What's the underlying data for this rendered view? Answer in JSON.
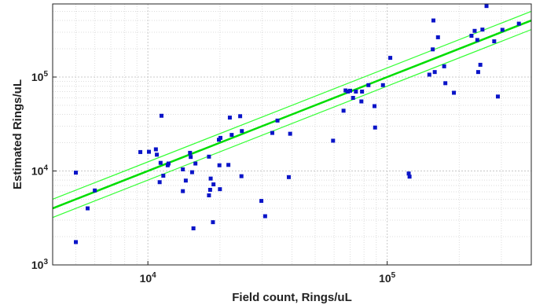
{
  "chart_data": {
    "type": "scatter",
    "title": "",
    "xlabel": "Field count, Rings/uL",
    "ylabel": "Estimated Rings/uL",
    "x_scale": "log",
    "y_scale": "log",
    "xlim": [
      4000,
      400000
    ],
    "ylim": [
      1000,
      600000
    ],
    "grid": true,
    "x_ticks": [
      {
        "value": 10000,
        "base": "10",
        "exp": "4"
      },
      {
        "value": 100000,
        "base": "10",
        "exp": "5"
      }
    ],
    "y_ticks": [
      {
        "value": 1000,
        "base": "10",
        "exp": "3"
      },
      {
        "value": 10000,
        "base": "10",
        "exp": "4"
      },
      {
        "value": 100000,
        "base": "10",
        "exp": "5"
      }
    ],
    "lines": [
      {
        "role": "fit",
        "x": [
          4000,
          400000
        ],
        "y": [
          4000,
          400000
        ],
        "color": "#00dd00"
      },
      {
        "role": "upper-bound",
        "x": [
          4000,
          400000
        ],
        "y": [
          5000,
          500000
        ],
        "color": "#33ff33"
      },
      {
        "role": "lower-bound",
        "x": [
          4000,
          400000
        ],
        "y": [
          3200,
          320000
        ],
        "color": "#33ff33"
      }
    ],
    "series": [
      {
        "marker_color": "#0a14c8",
        "points": [
          [
            5000,
            9600
          ],
          [
            5000,
            1750
          ],
          [
            5600,
            4000
          ],
          [
            6000,
            6200
          ],
          [
            9300,
            15900
          ],
          [
            10100,
            16000
          ],
          [
            10800,
            17000
          ],
          [
            10900,
            14900
          ],
          [
            11200,
            7600
          ],
          [
            11300,
            12200
          ],
          [
            11400,
            38700
          ],
          [
            11600,
            8900
          ],
          [
            12100,
            11500
          ],
          [
            12200,
            12000
          ],
          [
            14000,
            6100
          ],
          [
            14000,
            10400
          ],
          [
            14400,
            7900
          ],
          [
            15000,
            15600
          ],
          [
            15100,
            14100
          ],
          [
            15300,
            9700
          ],
          [
            15500,
            2450
          ],
          [
            15800,
            12000
          ],
          [
            18000,
            14200
          ],
          [
            18000,
            5500
          ],
          [
            18200,
            6300
          ],
          [
            18300,
            8300
          ],
          [
            18700,
            2850
          ],
          [
            18800,
            7200
          ],
          [
            19800,
            21500
          ],
          [
            19900,
            11500
          ],
          [
            20000,
            6400
          ],
          [
            20100,
            22500
          ],
          [
            21700,
            11600
          ],
          [
            22000,
            37000
          ],
          [
            22400,
            24200
          ],
          [
            24300,
            38300
          ],
          [
            24600,
            8800
          ],
          [
            24700,
            26600
          ],
          [
            29800,
            4800
          ],
          [
            30900,
            3300
          ],
          [
            33100,
            25400
          ],
          [
            34800,
            34400
          ],
          [
            38800,
            8600
          ],
          [
            39300,
            24900
          ],
          [
            59400,
            21000
          ],
          [
            65700,
            43800
          ],
          [
            67000,
            72000
          ],
          [
            68500,
            70000
          ],
          [
            70000,
            71500
          ],
          [
            72000,
            60000
          ],
          [
            74000,
            70000
          ],
          [
            78000,
            55000
          ],
          [
            78500,
            70000
          ],
          [
            83500,
            82000
          ],
          [
            88500,
            49000
          ],
          [
            89000,
            29000
          ],
          [
            96000,
            82000
          ],
          [
            103000,
            160000
          ],
          [
            123000,
            9400
          ],
          [
            124000,
            8700
          ],
          [
            150000,
            106000
          ],
          [
            155000,
            197000
          ],
          [
            156000,
            400000
          ],
          [
            158000,
            113000
          ],
          [
            163000,
            265000
          ],
          [
            173000,
            130000
          ],
          [
            175000,
            86000
          ],
          [
            190000,
            68000
          ],
          [
            225000,
            275000
          ],
          [
            232000,
            310000
          ],
          [
            238000,
            248000
          ],
          [
            240000,
            113000
          ],
          [
            245000,
            135000
          ],
          [
            250000,
            320000
          ],
          [
            260000,
            570000
          ],
          [
            280000,
            240000
          ],
          [
            290000,
            62000
          ],
          [
            303000,
            318000
          ],
          [
            355000,
            370000
          ]
        ]
      }
    ]
  }
}
